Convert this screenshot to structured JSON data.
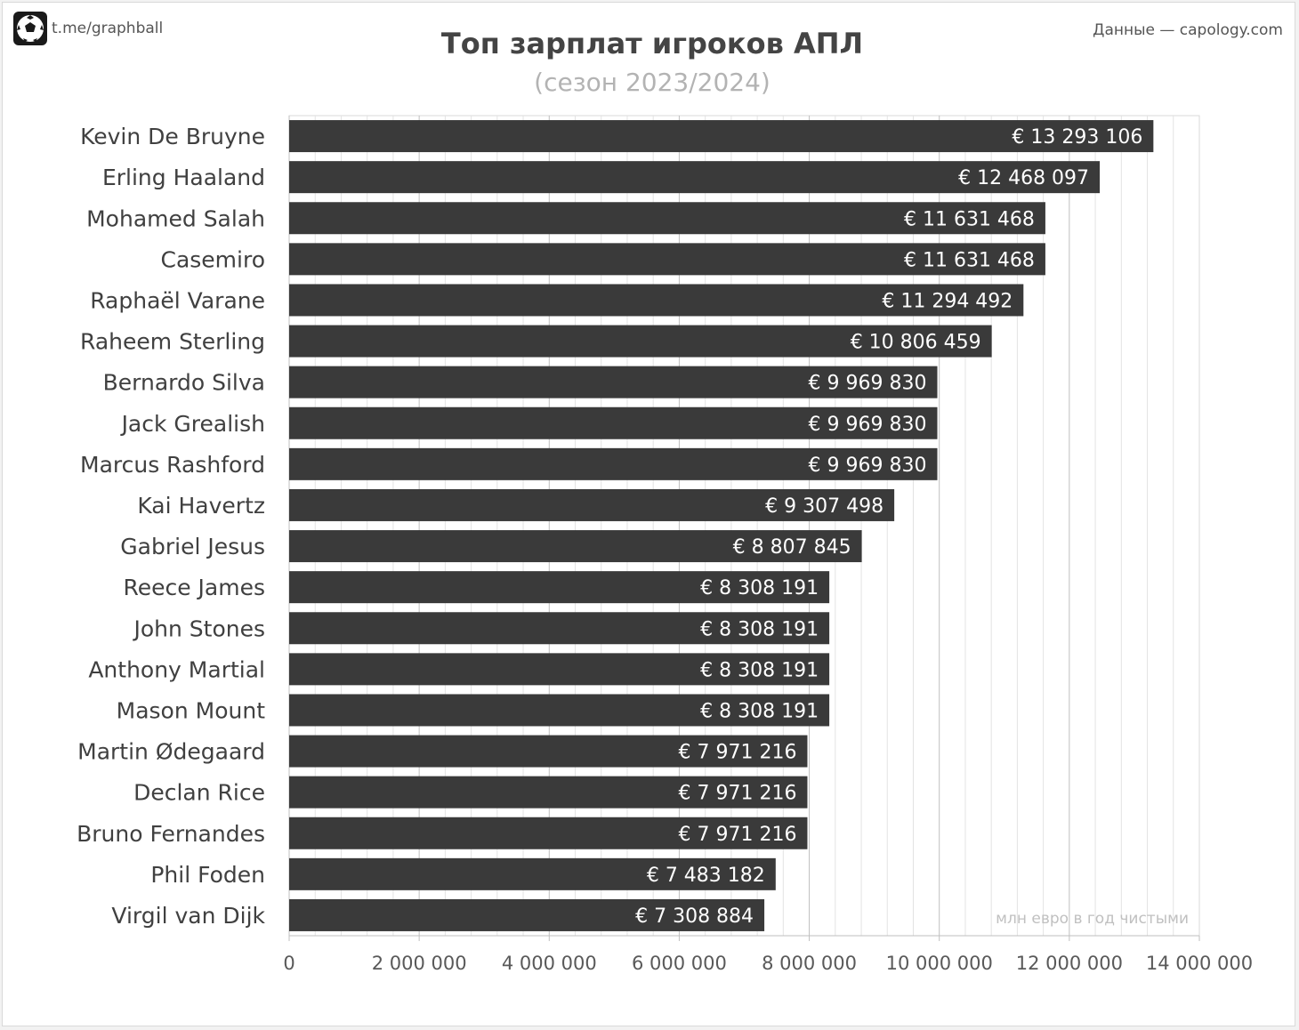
{
  "header": {
    "brand_text": "t.me/graphball",
    "source_text": "Данные — capology.com",
    "logo_icon": "soccer-ball-icon"
  },
  "chart_data": {
    "type": "bar",
    "orientation": "horizontal",
    "title": "Топ зарплат игроков АПЛ",
    "subtitle": "(сезон 2023/2024)",
    "unit_note": "млн евро в год чистыми",
    "xlim": [
      0,
      14000000
    ],
    "x_ticks": [
      0,
      2000000,
      4000000,
      6000000,
      8000000,
      10000000,
      12000000,
      14000000
    ],
    "x_tick_labels": [
      "0",
      "2 000 000",
      "4 000 000",
      "6 000 000",
      "8 000 000",
      "10 000 000",
      "12 000 000",
      "14 000 000"
    ],
    "grid": true,
    "bar_color": "#3a3a3a",
    "categories": [
      "Kevin De Bruyne",
      "Erling Haaland",
      "Mohamed Salah",
      "Casemiro",
      "Raphaël Varane",
      "Raheem Sterling",
      "Bernardo Silva",
      "Jack Grealish",
      "Marcus Rashford",
      "Kai Havertz",
      "Gabriel Jesus",
      "Reece James",
      "John Stones",
      "Anthony Martial",
      "Mason Mount",
      "Martin Ødegaard",
      "Declan Rice",
      "Bruno Fernandes",
      "Phil Foden",
      "Virgil van Dijk"
    ],
    "values": [
      13293106,
      12468097,
      11631468,
      11631468,
      11294492,
      10806459,
      9969830,
      9969830,
      9969830,
      9307498,
      8807845,
      8308191,
      8308191,
      8308191,
      8308191,
      7971216,
      7971216,
      7971216,
      7483182,
      7308884
    ],
    "value_labels": [
      "€ 13 293 106",
      "€ 12 468 097",
      "€ 11 631 468",
      "€ 11 631 468",
      "€ 11 294 492",
      "€ 10 806 459",
      "€ 9 969 830",
      "€ 9 969 830",
      "€ 9 969 830",
      "€ 9 307 498",
      "€ 8 807 845",
      "€ 8 308 191",
      "€ 8 308 191",
      "€ 8 308 191",
      "€ 8 308 191",
      "€ 7 971 216",
      "€ 7 971 216",
      "€ 7 971 216",
      "€ 7 483 182",
      "€ 7 308 884"
    ]
  }
}
